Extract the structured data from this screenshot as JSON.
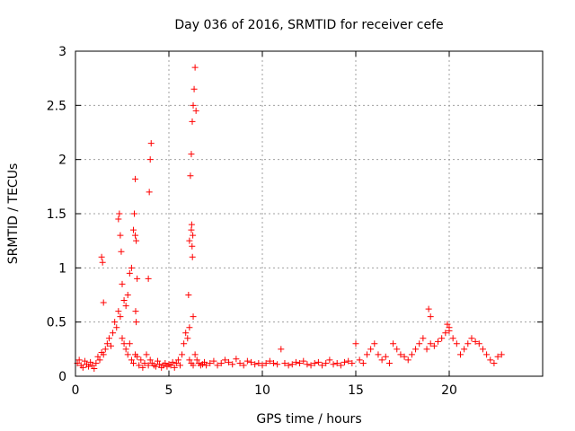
{
  "chart_data": {
    "type": "scatter",
    "title": "Day 036 of 2016, SRMTID for receiver cefe",
    "xlabel": "GPS time / hours",
    "ylabel": "SRMTID / TECUs",
    "xlim": [
      0,
      25
    ],
    "ylim": [
      0,
      3
    ],
    "xticks": [
      0,
      5,
      10,
      15,
      20
    ],
    "xtick_labels": [
      "0",
      "5",
      "10",
      "15",
      "20"
    ],
    "yticks": [
      0,
      0.5,
      1,
      1.5,
      2,
      2.5,
      3
    ],
    "ytick_labels": [
      "0",
      "0.5",
      "1",
      "1.5",
      "2",
      "2.5",
      "3"
    ],
    "grid": true,
    "marker": "+",
    "series": [
      {
        "name": "SRMTID",
        "color": "#ff0000",
        "x": [
          0.1,
          0.2,
          0.3,
          0.4,
          0.5,
          0.6,
          0.7,
          0.8,
          0.9,
          1.0,
          1.1,
          1.2,
          1.3,
          1.4,
          1.5,
          1.6,
          1.7,
          1.8,
          1.9,
          2.0,
          2.1,
          2.2,
          2.3,
          2.4,
          2.5,
          2.6,
          2.7,
          2.8,
          2.9,
          3.0,
          3.1,
          3.2,
          3.3,
          3.4,
          3.5,
          3.6,
          3.7,
          3.8,
          3.9,
          4.0,
          4.1,
          4.2,
          4.3,
          4.4,
          4.5,
          4.6,
          4.7,
          4.8,
          4.9,
          5.0,
          5.1,
          5.2,
          5.3,
          5.4,
          5.5,
          5.6,
          5.7,
          5.8,
          5.9,
          6.0,
          6.1,
          6.2,
          6.3,
          6.4,
          6.5,
          6.6,
          6.7,
          6.8,
          6.9,
          7.0,
          7.2,
          7.4,
          7.6,
          7.8,
          8.0,
          8.2,
          8.4,
          8.6,
          8.8,
          9.0,
          9.2,
          9.4,
          9.6,
          9.8,
          10.0,
          10.2,
          10.4,
          10.6,
          10.8,
          11.0,
          11.2,
          11.4,
          11.6,
          11.8,
          12.0,
          12.2,
          12.4,
          12.6,
          12.8,
          13.0,
          13.2,
          13.4,
          13.6,
          13.8,
          14.0,
          14.2,
          14.4,
          14.6,
          14.8,
          15.0,
          15.2,
          15.4,
          15.6,
          15.8,
          16.0,
          16.2,
          16.4,
          16.6,
          16.8,
          17.0,
          17.2,
          17.4,
          17.6,
          17.8,
          18.0,
          18.2,
          18.4,
          18.6,
          18.8,
          19.0,
          19.2,
          19.4,
          19.6,
          19.8,
          20.0,
          20.2,
          20.4,
          20.6,
          20.8,
          21.0,
          21.2,
          21.4,
          21.6,
          21.8,
          22.0,
          22.2,
          22.4,
          22.6,
          22.8,
          1.4,
          1.45,
          2.3,
          2.35,
          2.4,
          2.45,
          2.5,
          2.6,
          2.7,
          2.8,
          2.9,
          3.0,
          3.1,
          3.15,
          3.2,
          3.25,
          3.3,
          3.9,
          3.95,
          4.0,
          4.05,
          6.05,
          6.1,
          6.15,
          6.2,
          6.25,
          6.3,
          6.35,
          6.4,
          6.45,
          6.2,
          6.22,
          6.24,
          6.26,
          6.28,
          3.2,
          3.22,
          3.25,
          1.5,
          6.1,
          6.3,
          18.9,
          19.0,
          19.9,
          20.0
        ],
        "y": [
          0.12,
          0.15,
          0.1,
          0.08,
          0.14,
          0.11,
          0.09,
          0.13,
          0.1,
          0.07,
          0.12,
          0.18,
          0.15,
          0.22,
          0.2,
          0.25,
          0.3,
          0.35,
          0.28,
          0.4,
          0.5,
          0.45,
          0.6,
          0.55,
          0.35,
          0.3,
          0.25,
          0.2,
          0.3,
          0.15,
          0.12,
          0.2,
          0.18,
          0.1,
          0.15,
          0.08,
          0.12,
          0.2,
          0.1,
          0.15,
          0.12,
          0.1,
          0.09,
          0.14,
          0.11,
          0.08,
          0.1,
          0.12,
          0.09,
          0.11,
          0.1,
          0.13,
          0.08,
          0.12,
          0.15,
          0.1,
          0.2,
          0.3,
          0.4,
          0.35,
          0.15,
          0.12,
          0.1,
          0.2,
          0.15,
          0.12,
          0.1,
          0.11,
          0.13,
          0.1,
          0.12,
          0.14,
          0.1,
          0.12,
          0.15,
          0.13,
          0.11,
          0.16,
          0.12,
          0.1,
          0.14,
          0.13,
          0.11,
          0.12,
          0.1,
          0.12,
          0.14,
          0.12,
          0.11,
          0.25,
          0.12,
          0.1,
          0.11,
          0.13,
          0.12,
          0.14,
          0.11,
          0.1,
          0.12,
          0.13,
          0.1,
          0.12,
          0.15,
          0.11,
          0.12,
          0.1,
          0.13,
          0.14,
          0.12,
          0.3,
          0.15,
          0.12,
          0.2,
          0.25,
          0.3,
          0.2,
          0.15,
          0.18,
          0.12,
          0.3,
          0.25,
          0.2,
          0.18,
          0.15,
          0.2,
          0.25,
          0.3,
          0.35,
          0.25,
          0.3,
          0.28,
          0.32,
          0.35,
          0.4,
          0.45,
          0.35,
          0.3,
          0.2,
          0.25,
          0.3,
          0.35,
          0.32,
          0.3,
          0.25,
          0.2,
          0.15,
          0.12,
          0.18,
          0.2,
          1.1,
          1.05,
          1.45,
          1.5,
          1.3,
          1.15,
          0.85,
          0.7,
          0.65,
          0.75,
          0.95,
          1.0,
          1.35,
          1.5,
          1.3,
          1.25,
          0.9,
          0.9,
          1.7,
          2.0,
          2.15,
          0.75,
          1.25,
          1.85,
          2.05,
          2.35,
          2.5,
          2.65,
          2.85,
          2.45,
          1.35,
          1.4,
          1.2,
          1.1,
          1.3,
          1.82,
          0.6,
          0.5,
          0.68,
          0.45,
          0.55,
          0.62,
          0.55,
          0.48,
          0.42
        ]
      }
    ]
  }
}
